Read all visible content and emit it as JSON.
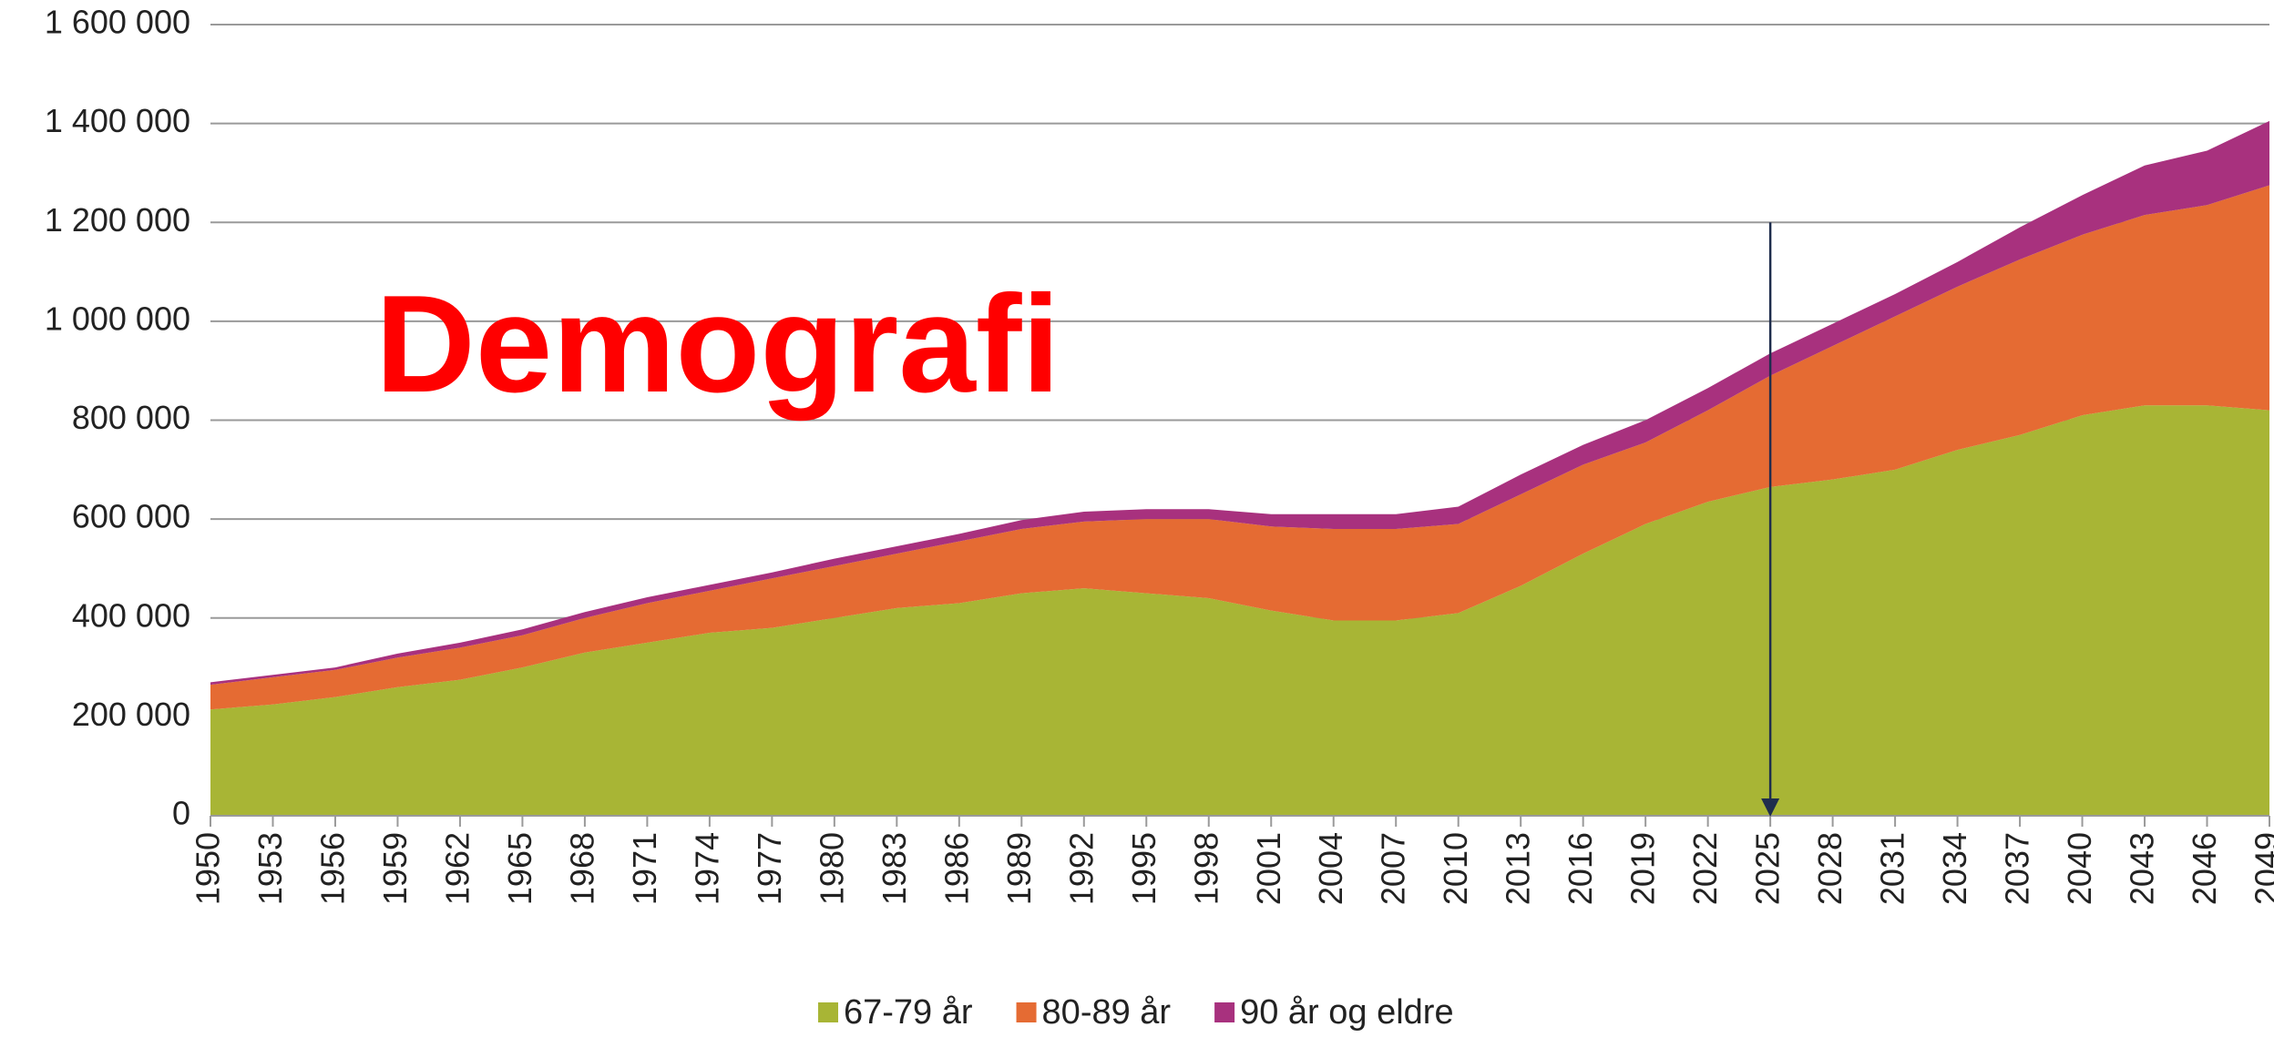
{
  "chart_data": {
    "type": "stacked_area",
    "title": "Demografi",
    "x": [
      1950,
      1953,
      1956,
      1959,
      1962,
      1965,
      1968,
      1971,
      1974,
      1977,
      1980,
      1983,
      1986,
      1989,
      1992,
      1995,
      1998,
      2001,
      2004,
      2007,
      2010,
      2013,
      2016,
      2019,
      2022,
      2025,
      2028,
      2031,
      2034,
      2037,
      2040,
      2043,
      2046,
      2049
    ],
    "series": [
      {
        "name": "67-79 år",
        "color": "#a8b535",
        "values": [
          215000,
          225000,
          240000,
          260000,
          275000,
          300000,
          330000,
          350000,
          370000,
          380000,
          400000,
          420000,
          430000,
          450000,
          460000,
          450000,
          440000,
          415000,
          395000,
          395000,
          410000,
          465000,
          530000,
          590000,
          635000,
          665000,
          680000,
          700000,
          740000,
          770000,
          810000,
          830000,
          830000,
          820000
        ]
      },
      {
        "name": "80-89 år",
        "color": "#e56b33",
        "values": [
          50000,
          55000,
          55000,
          60000,
          65000,
          65000,
          70000,
          80000,
          85000,
          100000,
          105000,
          110000,
          125000,
          130000,
          135000,
          150000,
          160000,
          170000,
          185000,
          185000,
          180000,
          185000,
          180000,
          165000,
          185000,
          225000,
          270000,
          310000,
          330000,
          355000,
          365000,
          385000,
          405000,
          455000
        ]
      },
      {
        "name": "90 år og eldre",
        "color": "#a8317e",
        "values": [
          5000,
          5000,
          5000,
          8000,
          10000,
          12000,
          12000,
          12000,
          12000,
          12000,
          15000,
          15000,
          15000,
          18000,
          20000,
          20000,
          20000,
          25000,
          30000,
          30000,
          35000,
          40000,
          40000,
          45000,
          45000,
          45000,
          45000,
          45000,
          50000,
          65000,
          80000,
          100000,
          110000,
          130000
        ]
      }
    ],
    "xlim": [
      1950,
      2049
    ],
    "xticks": [
      1950,
      1953,
      1956,
      1959,
      1962,
      1965,
      1968,
      1971,
      1974,
      1977,
      1980,
      1983,
      1986,
      1989,
      1992,
      1995,
      1998,
      2001,
      2004,
      2007,
      2010,
      2013,
      2016,
      2019,
      2022,
      2025,
      2028,
      2031,
      2034,
      2037,
      2040,
      2043,
      2046,
      2049
    ],
    "ylim": [
      0,
      1600000
    ],
    "yticks": [
      0,
      {
        "value": 200000,
        "label": "200 000"
      },
      {
        "value": 400000,
        "label": "400 000"
      },
      {
        "value": 600000,
        "label": "600 000"
      },
      {
        "value": 800000,
        "label": "800 000"
      },
      {
        "value": 1000000,
        "label": "1 000 000"
      },
      {
        "value": 1200000,
        "label": "1 200 000"
      },
      {
        "value": 1400000,
        "label": "1 400 000"
      },
      {
        "value": 1600000,
        "label": "1 600 000"
      }
    ],
    "grid": true,
    "legend": "bottom",
    "arrow": {
      "x": 2025,
      "y": 1200000,
      "color": "#1f2d4d"
    }
  }
}
